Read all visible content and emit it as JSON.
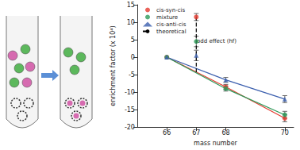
{
  "chart_data": {
    "type": "scatter",
    "x_label": "mass number",
    "y_label": "enrichment factor (x 10⁴)",
    "annotation": "odd effect (hf)",
    "x": [
      66,
      67,
      68,
      70
    ],
    "xlim": [
      65,
      70.3
    ],
    "xticks": [
      66,
      67,
      68,
      70
    ],
    "ylim": [
      -20,
      15
    ],
    "yticks": [
      -20,
      -15,
      -10,
      -5,
      0,
      5,
      10,
      15
    ],
    "grid": false,
    "legend": "upper left",
    "series": [
      {
        "name": "cis-syn-cis",
        "color": "#e53b30",
        "marker": "circle",
        "values": [
          0,
          11.5,
          -8.5,
          -17.5
        ],
        "errors": [
          0,
          1,
          0.7,
          1
        ]
      },
      {
        "name": "mixture",
        "color": "#2e9a5a",
        "marker": "circle",
        "values": [
          0,
          4.5,
          -9,
          -16.5
        ],
        "errors": [
          0,
          1.5,
          0.7,
          1
        ]
      },
      {
        "name": "cis-anti-cis",
        "color": "#3b5fae",
        "marker": "triangle",
        "values": [
          0,
          0.5,
          -6.5,
          -12
        ],
        "errors": [
          0,
          1.5,
          0.7,
          1
        ]
      },
      {
        "name": "theoretical",
        "type": "line",
        "color": "#000000",
        "line_style": "dashed",
        "x": [
          67,
          67
        ],
        "values": [
          11.5,
          -4.5
        ]
      }
    ]
  }
}
